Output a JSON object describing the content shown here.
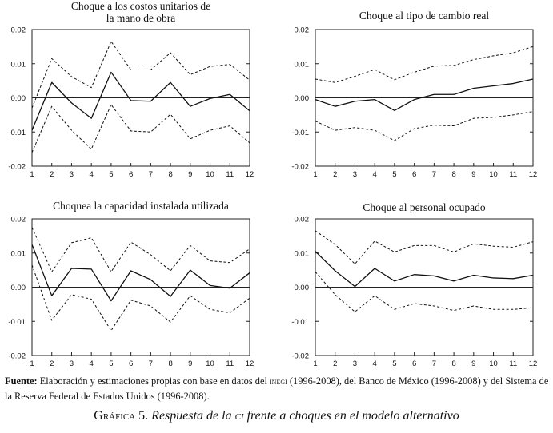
{
  "chart_data": [
    {
      "type": "line",
      "title_lines": [
        "Choque a los costos unitarios de",
        "la mano de obra"
      ],
      "x": [
        1,
        2,
        3,
        4,
        5,
        6,
        7,
        8,
        9,
        10,
        11,
        12
      ],
      "x_ticks": [
        "1",
        "2",
        "3",
        "4",
        "5",
        "6",
        "7",
        "8",
        "9",
        "10",
        "11",
        "12"
      ],
      "ylim": [
        -0.02,
        0.02
      ],
      "y_ticks": [
        "0.02",
        "0.01",
        "0.00",
        "-0.01",
        "-0.02"
      ],
      "zero_line": true,
      "series": [
        {
          "style": "solid",
          "values": [
            -0.0095,
            0.0045,
            -0.0015,
            -0.006,
            0.0075,
            -0.0008,
            -0.001,
            0.0045,
            -0.0025,
            -0.0002,
            0.001,
            -0.0038
          ]
        },
        {
          "style": "dashed",
          "values": [
            -0.003,
            0.0115,
            0.0062,
            0.003,
            0.0165,
            0.0082,
            0.0082,
            0.0132,
            0.0068,
            0.0092,
            0.0098,
            0.0052
          ]
        },
        {
          "style": "dashed",
          "values": [
            -0.016,
            -0.0025,
            -0.0095,
            -0.015,
            -0.002,
            -0.0097,
            -0.01,
            -0.0048,
            -0.012,
            -0.0095,
            -0.0082,
            -0.0132
          ]
        }
      ]
    },
    {
      "type": "line",
      "title_lines": [
        "Choque al tipo de cambio real"
      ],
      "x": [
        1,
        2,
        3,
        4,
        5,
        6,
        7,
        8,
        9,
        10,
        11,
        12
      ],
      "x_ticks": [
        "1",
        "2",
        "3",
        "4",
        "5",
        "6",
        "7",
        "8",
        "9",
        "10",
        "11",
        "12"
      ],
      "ylim": [
        -0.02,
        0.02
      ],
      "y_ticks": [
        "0.02",
        "0.01",
        "0.00",
        "-0.01",
        "-0.02"
      ],
      "zero_line": true,
      "series": [
        {
          "style": "solid",
          "values": [
            -0.0005,
            -0.0025,
            -0.001,
            -0.0005,
            -0.0037,
            -0.0005,
            0.001,
            0.001,
            0.0028,
            0.0035,
            0.0042,
            0.0055
          ]
        },
        {
          "style": "dashed",
          "values": [
            0.0055,
            0.0045,
            0.0063,
            0.0083,
            0.0053,
            0.0075,
            0.0093,
            0.0095,
            0.0112,
            0.0123,
            0.0132,
            0.015
          ]
        },
        {
          "style": "dashed",
          "values": [
            -0.0068,
            -0.0095,
            -0.0087,
            -0.0095,
            -0.0125,
            -0.009,
            -0.008,
            -0.0082,
            -0.006,
            -0.0057,
            -0.005,
            -0.004
          ]
        }
      ]
    },
    {
      "type": "line",
      "title_lines": [
        "Choquea la capacidad instalada utilizada"
      ],
      "x": [
        1,
        2,
        3,
        4,
        5,
        6,
        7,
        8,
        9,
        10,
        11,
        12
      ],
      "x_ticks": [
        "1",
        "2",
        "3",
        "4",
        "5",
        "6",
        "7",
        "8",
        "9",
        "10",
        "11",
        "12"
      ],
      "ylim": [
        -0.02,
        0.02
      ],
      "y_ticks": [
        "0.02",
        "0.01",
        "0.00",
        "-0.01",
        "-0.02"
      ],
      "zero_line": true,
      "series": [
        {
          "style": "solid",
          "values": [
            0.0125,
            -0.0025,
            0.0055,
            0.0053,
            -0.004,
            0.0048,
            0.0022,
            -0.0027,
            0.005,
            0.0005,
            -0.0003,
            0.0042
          ]
        },
        {
          "style": "dashed",
          "values": [
            0.0175,
            0.0045,
            0.013,
            0.0145,
            0.0045,
            0.0132,
            0.0095,
            0.0048,
            0.0122,
            0.0077,
            0.0072,
            0.0112
          ]
        },
        {
          "style": "dashed",
          "values": [
            0.0065,
            -0.0097,
            -0.0022,
            -0.0035,
            -0.0127,
            -0.0038,
            -0.0055,
            -0.0102,
            -0.0025,
            -0.0065,
            -0.0075,
            -0.0032
          ]
        }
      ]
    },
    {
      "type": "line",
      "title_lines": [
        "Choque al personal ocupado"
      ],
      "x": [
        1,
        2,
        3,
        4,
        5,
        6,
        7,
        8,
        9,
        10,
        11,
        12
      ],
      "x_ticks": [
        "1",
        "2",
        "3",
        "4",
        "5",
        "6",
        "7",
        "8",
        "9",
        "10",
        "11",
        "12"
      ],
      "ylim": [
        -0.02,
        0.02
      ],
      "y_ticks": [
        "0.02",
        "0.01",
        "0.00",
        "-0.01",
        "-0.02"
      ],
      "zero_line": true,
      "series": [
        {
          "style": "solid",
          "values": [
            0.0105,
            0.0048,
            0.0002,
            0.0055,
            0.0018,
            0.0037,
            0.0033,
            0.0018,
            0.0035,
            0.0027,
            0.0025,
            0.0035
          ]
        },
        {
          "style": "dashed",
          "values": [
            0.0165,
            0.0125,
            0.0068,
            0.0135,
            0.0103,
            0.0122,
            0.0122,
            0.0103,
            0.0127,
            0.012,
            0.0117,
            0.0133
          ]
        },
        {
          "style": "dashed",
          "values": [
            0.0045,
            -0.0022,
            -0.0072,
            -0.0025,
            -0.0065,
            -0.0048,
            -0.0055,
            -0.0068,
            -0.0055,
            -0.0065,
            -0.0065,
            -0.006
          ]
        }
      ]
    }
  ],
  "footnote": {
    "label": "Fuente:",
    "text_1": " Elaboración y estimaciones propias con base en datos del ",
    "inegi": "inegi",
    "text_2": " (1996-2008), del Banco de México (1996-2008) y del Sistema de la Reserva Federal de Estados Unidos (1996-2008)."
  },
  "caption": {
    "prefix": "Gráfica",
    "number": " 5. ",
    "text_1": "Respuesta de la ",
    "ci": "ci",
    "text_2": " frente a choques en el modelo alternativo"
  }
}
